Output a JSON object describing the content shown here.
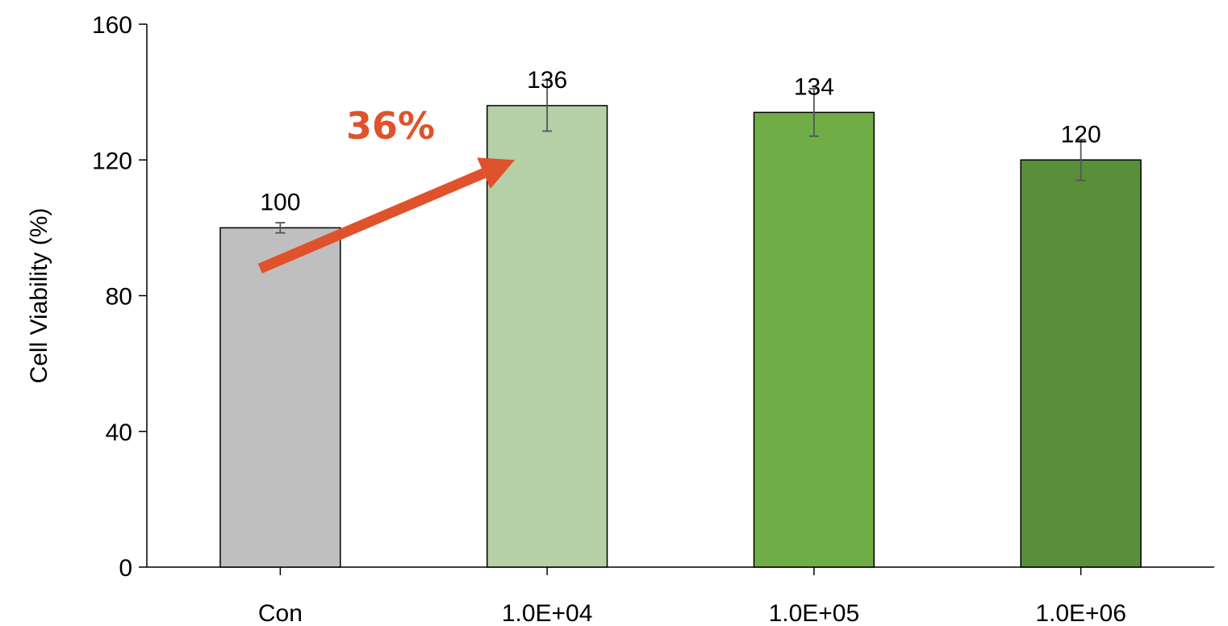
{
  "chart_data": {
    "type": "bar",
    "title": "",
    "xlabel": "",
    "ylabel": "Cell Viability (%)",
    "ylim": [
      0,
      160
    ],
    "yticks": [
      0,
      40,
      80,
      120,
      160
    ],
    "grid": false,
    "legend": "none",
    "categories": [
      "Con",
      "1.0E+04",
      "1.0E+05",
      "1.0E+06"
    ],
    "values": [
      100,
      136,
      134,
      120
    ],
    "errors": [
      1.5,
      7.5,
      7,
      6
    ],
    "data_labels": [
      "100",
      "136",
      "134",
      "120"
    ],
    "bar_colors": [
      "#BFBFBF",
      "#B5CFA7",
      "#70AD47",
      "#5A8F3A"
    ],
    "annotation": {
      "text": "36%",
      "color": "#E0522B",
      "from_category": "Con",
      "to_category": "1.0E+04"
    }
  }
}
